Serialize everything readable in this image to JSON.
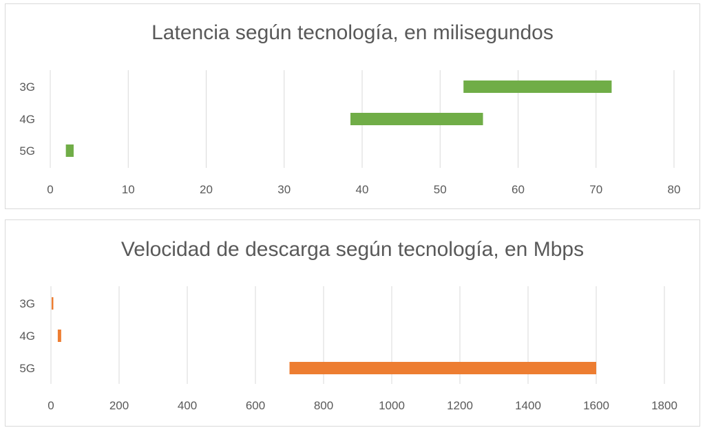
{
  "chart_data": [
    {
      "type": "bar",
      "orientation": "horizontal",
      "subtype": "floating range",
      "title": "Latencia según tecnología, en milisegundos",
      "categories": [
        "3G",
        "4G",
        "5G"
      ],
      "series": [
        {
          "color": "#70ad47",
          "ranges": [
            [
              53,
              72
            ],
            [
              38.5,
              55.5
            ],
            [
              2,
              3
            ]
          ]
        }
      ],
      "xlim": [
        0,
        80
      ],
      "xticks": [
        "0",
        "10",
        "20",
        "30",
        "40",
        "50",
        "60",
        "70",
        "80"
      ],
      "xtick_values": [
        0,
        10,
        20,
        30,
        40,
        50,
        60,
        70,
        80
      ],
      "grid": "vertical",
      "legend": "none"
    },
    {
      "type": "bar",
      "orientation": "horizontal",
      "subtype": "floating range",
      "title": "Velocidad de descarga según tecnología, en Mbps",
      "categories": [
        "3G",
        "4G",
        "5G"
      ],
      "series": [
        {
          "color": "#ed7d31",
          "ranges": [
            [
              2,
              7
            ],
            [
              20,
              30
            ],
            [
              700,
              1600
            ]
          ]
        }
      ],
      "xlim": [
        0,
        1800
      ],
      "xticks": [
        "0",
        "200",
        "400",
        "600",
        "800",
        "1000",
        "1200",
        "1400",
        "1600",
        "1800"
      ],
      "xtick_values": [
        0,
        200,
        400,
        600,
        800,
        1000,
        1200,
        1400,
        1600,
        1800
      ],
      "grid": "vertical",
      "legend": "none"
    }
  ]
}
